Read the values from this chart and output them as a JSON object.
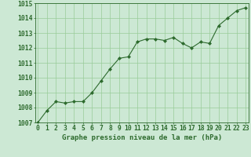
{
  "x": [
    0,
    1,
    2,
    3,
    4,
    5,
    6,
    7,
    8,
    9,
    10,
    11,
    12,
    13,
    14,
    15,
    16,
    17,
    18,
    19,
    20,
    21,
    22,
    23
  ],
  "y": [
    1007.0,
    1007.8,
    1008.4,
    1008.3,
    1008.4,
    1008.4,
    1009.0,
    1009.8,
    1010.6,
    1011.3,
    1011.4,
    1012.4,
    1012.6,
    1012.6,
    1012.5,
    1012.7,
    1012.3,
    1012.0,
    1012.4,
    1012.3,
    1013.5,
    1014.0,
    1014.5,
    1014.7
  ],
  "ylim": [
    1007,
    1015
  ],
  "yticks": [
    1007,
    1008,
    1009,
    1010,
    1011,
    1012,
    1013,
    1014,
    1015
  ],
  "xticks": [
    0,
    1,
    2,
    3,
    4,
    5,
    6,
    7,
    8,
    9,
    10,
    11,
    12,
    13,
    14,
    15,
    16,
    17,
    18,
    19,
    20,
    21,
    22,
    23
  ],
  "xlabel": "Graphe pression niveau de la mer (hPa)",
  "line_color": "#2d6a2d",
  "marker_color": "#2d6a2d",
  "bg_color": "#cce8d4",
  "grid_color": "#99cc99",
  "text_color": "#2d6a2d",
  "axis_color": "#2d6a2d",
  "label_fontsize": 6.5,
  "tick_fontsize": 5.8
}
